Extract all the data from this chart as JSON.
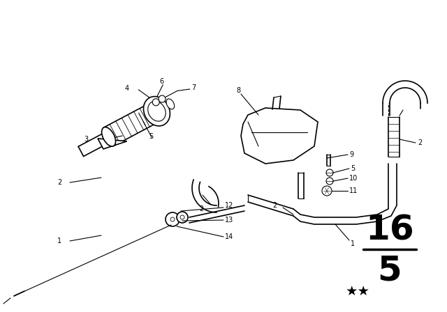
{
  "bg_color": "#ffffff",
  "line_color": "#000000",
  "figsize": [
    6.4,
    4.48
  ],
  "dpi": 100,
  "page_number_top": "16",
  "page_number_bot": "5",
  "stars": "★★"
}
